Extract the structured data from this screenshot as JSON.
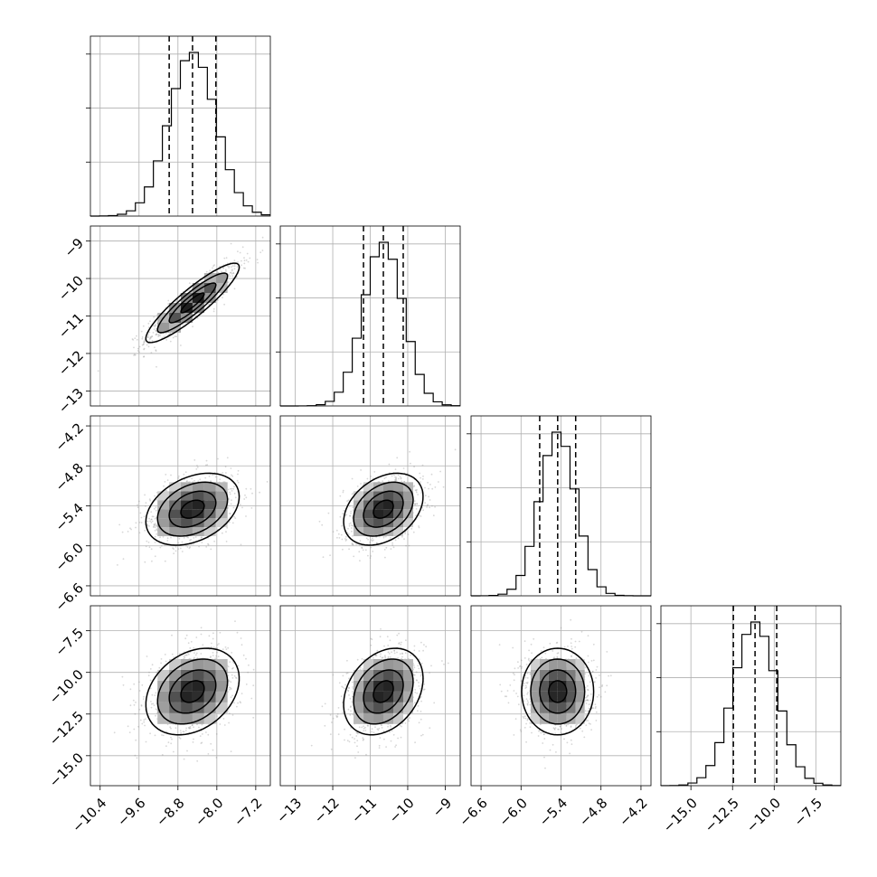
{
  "chart_data": {
    "type": "corner",
    "variables": [
      {
        "range": [
          -10.6,
          -6.9
        ],
        "median": -8.5,
        "q16": -8.98,
        "q84": -8.02,
        "std": 0.48,
        "ticks": [
          -10.4,
          -9.6,
          -8.8,
          -8.0,
          -7.2
        ],
        "tick_labels": [
          "−10.4",
          "−9.6",
          "−8.8",
          "−8.0",
          "−7.2"
        ]
      },
      {
        "range": [
          -13.4,
          -8.6
        ],
        "median": -10.65,
        "q16": -11.18,
        "q84": -10.12,
        "std": 0.53,
        "ticks": [
          -13,
          -12,
          -11,
          -10,
          -9
        ],
        "tick_labels": [
          "−13",
          "−12",
          "−11",
          "−10",
          "−9"
        ]
      },
      {
        "range": [
          -6.75,
          -4.05
        ],
        "median": -5.45,
        "q16": -5.72,
        "q84": -5.18,
        "std": 0.27,
        "ticks": [
          -6.6,
          -6.0,
          -5.4,
          -4.8,
          -4.2
        ],
        "tick_labels": [
          "−6.6",
          "−6.0",
          "−5.4",
          "−4.8",
          "−4.2"
        ]
      },
      {
        "range": [
          -16.8,
          -6.0
        ],
        "median": -11.15,
        "q16": -12.45,
        "q84": -9.85,
        "std": 1.3,
        "ticks": [
          -15.0,
          -12.5,
          -10.0,
          -7.5
        ],
        "tick_labels": [
          "−15.0",
          "−12.5",
          "−10.0",
          "−7.5"
        ]
      }
    ],
    "correlations": [
      [
        1,
        0.9,
        0.35,
        0.3
      ],
      [
        0.9,
        1,
        0.35,
        0.3
      ],
      [
        0.35,
        0.35,
        1,
        0.0
      ],
      [
        0.3,
        0.3,
        0.0,
        1
      ]
    ],
    "xlabels": [
      "",
      "",
      "",
      ""
    ],
    "ylabels": [
      "",
      "",
      "",
      ""
    ],
    "grid": true
  },
  "colors": {
    "points": "#8c8c8c",
    "lines": "#000000",
    "grid": "#b0b0b0"
  }
}
